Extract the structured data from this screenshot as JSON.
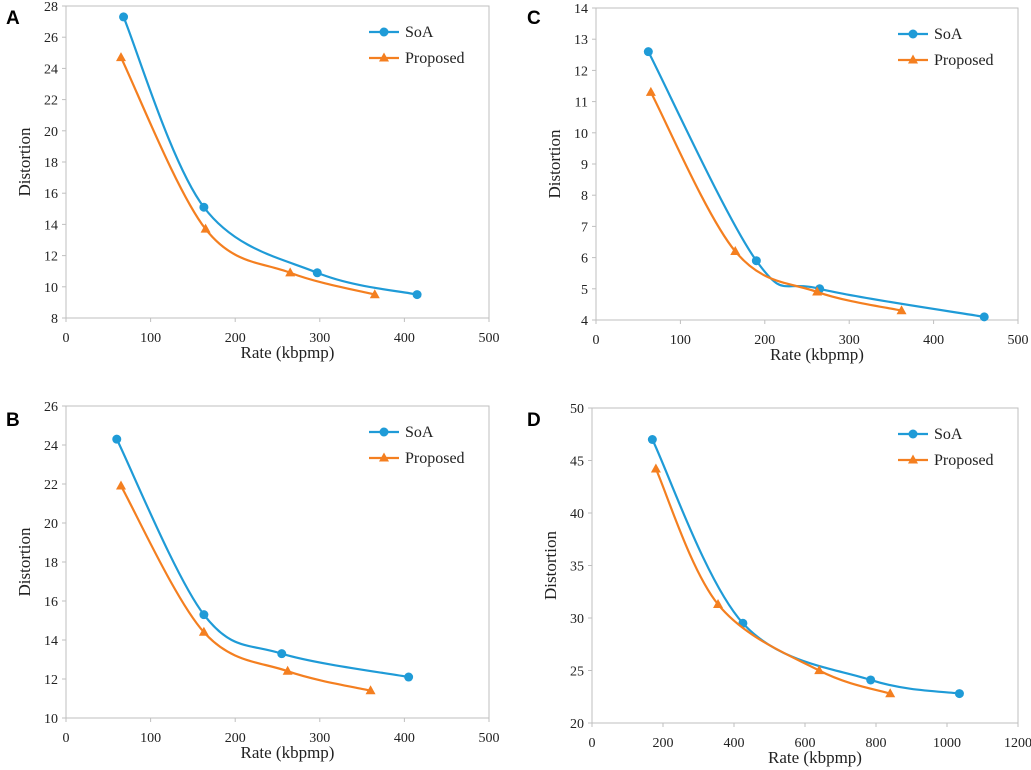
{
  "chart_data": [
    {
      "panel": "A",
      "type": "line",
      "xlabel": "Rate (kbpmp)",
      "ylabel": "Distortion",
      "xlim": [
        0,
        500
      ],
      "ylim": [
        8,
        28
      ],
      "xticks": [
        0,
        100,
        200,
        300,
        400,
        500
      ],
      "yticks": [
        8,
        10,
        12,
        14,
        16,
        18,
        20,
        22,
        24,
        26,
        28
      ],
      "grid": false,
      "legend_position": "top-right",
      "series": [
        {
          "name": "SoA",
          "color": "#1f9bd7",
          "marker": "circle",
          "x": [
            68,
            163,
            297,
            415
          ],
          "y": [
            27.3,
            15.1,
            10.9,
            9.5
          ]
        },
        {
          "name": "Proposed",
          "color": "#f47f20",
          "marker": "triangle",
          "x": [
            65,
            165,
            265,
            365
          ],
          "y": [
            24.7,
            13.7,
            10.9,
            9.5
          ]
        }
      ]
    },
    {
      "panel": "C",
      "type": "line",
      "xlabel": "Rate (kbpmp)",
      "ylabel": "Distortion",
      "xlim": [
        0,
        500
      ],
      "ylim": [
        4,
        14
      ],
      "xticks": [
        0,
        100,
        200,
        300,
        400,
        500
      ],
      "yticks": [
        4,
        5,
        6,
        7,
        8,
        9,
        10,
        11,
        12,
        13,
        14
      ],
      "grid": false,
      "legend_position": "top-right",
      "series": [
        {
          "name": "SoA",
          "color": "#1f9bd7",
          "marker": "circle",
          "x": [
            62,
            190,
            265,
            460
          ],
          "y": [
            12.6,
            5.9,
            5.0,
            4.1
          ]
        },
        {
          "name": "Proposed",
          "color": "#f47f20",
          "marker": "triangle",
          "x": [
            65,
            165,
            262,
            362
          ],
          "y": [
            11.3,
            6.2,
            4.9,
            4.3
          ]
        }
      ]
    },
    {
      "panel": "B",
      "type": "line",
      "xlabel": "Rate (kbpmp)",
      "ylabel": "Distortion",
      "xlim": [
        0,
        500
      ],
      "ylim": [
        10,
        26
      ],
      "xticks": [
        0,
        100,
        200,
        300,
        400,
        500
      ],
      "yticks": [
        10,
        12,
        14,
        16,
        18,
        20,
        22,
        24,
        26
      ],
      "grid": false,
      "legend_position": "top-right",
      "series": [
        {
          "name": "SoA",
          "color": "#1f9bd7",
          "marker": "circle",
          "x": [
            60,
            163,
            255,
            405
          ],
          "y": [
            24.3,
            15.3,
            13.3,
            12.1
          ]
        },
        {
          "name": "Proposed",
          "color": "#f47f20",
          "marker": "triangle",
          "x": [
            65,
            163,
            262,
            360
          ],
          "y": [
            21.9,
            14.4,
            12.4,
            11.4
          ]
        }
      ]
    },
    {
      "panel": "D",
      "type": "line",
      "xlabel": "Rate (kbpmp)",
      "ylabel": "Distortion",
      "xlim": [
        0,
        1200
      ],
      "ylim": [
        20,
        50
      ],
      "xticks": [
        0,
        200,
        400,
        600,
        800,
        1000,
        1200
      ],
      "yticks": [
        20,
        25,
        30,
        35,
        40,
        45,
        50
      ],
      "grid": false,
      "legend_position": "top-right",
      "series": [
        {
          "name": "SoA",
          "color": "#1f9bd7",
          "marker": "circle",
          "x": [
            170,
            425,
            785,
            1035
          ],
          "y": [
            47.0,
            29.5,
            24.1,
            22.8
          ]
        },
        {
          "name": "Proposed",
          "color": "#f47f20",
          "marker": "triangle",
          "x": [
            180,
            355,
            640,
            840
          ],
          "y": [
            44.2,
            31.3,
            25.0,
            22.8
          ]
        }
      ]
    }
  ]
}
